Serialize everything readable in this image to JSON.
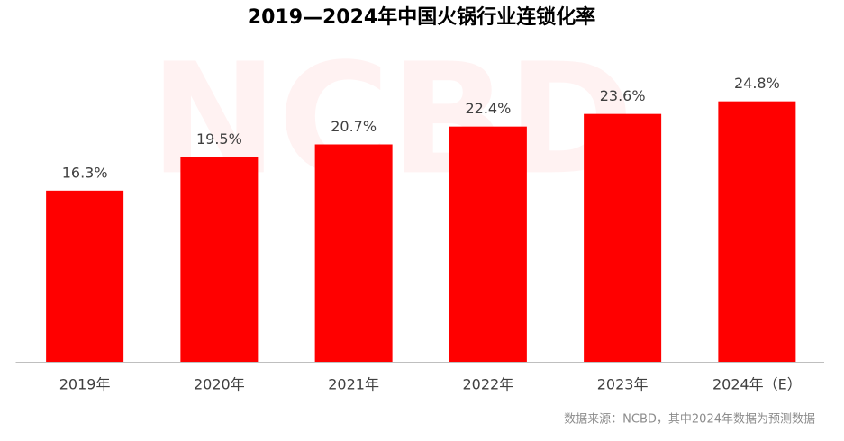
{
  "chart_data": {
    "type": "bar",
    "title": "2019—2024年中国火锅行业连锁化率",
    "categories": [
      "2019年",
      "2020年",
      "2021年",
      "2022年",
      "2023年",
      "2024年（E）"
    ],
    "values": [
      16.3,
      19.5,
      20.7,
      22.4,
      23.6,
      24.8
    ],
    "value_labels": [
      "16.3%",
      "19.5%",
      "20.7%",
      "22.4%",
      "23.6%",
      "24.8%"
    ],
    "color": "#ff0000",
    "ylim": [
      0,
      30
    ],
    "watermark": "NCBD",
    "source": "数据来源：NCBD，其中2024年数据为预测数据"
  }
}
